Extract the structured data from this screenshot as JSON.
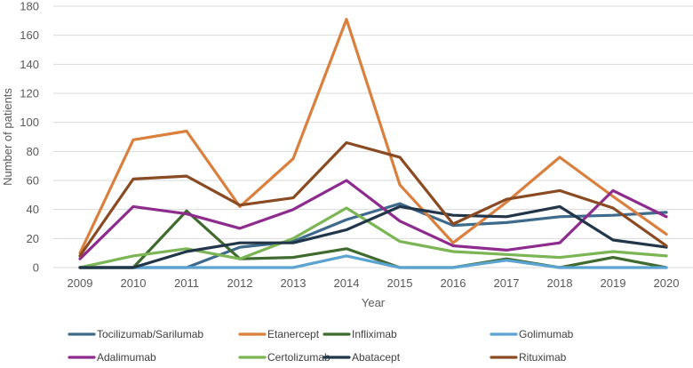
{
  "chart_data": {
    "type": "line",
    "title": "",
    "xlabel": "Year",
    "ylabel": "Number of patients",
    "ylim": [
      0,
      180
    ],
    "yticks": [
      0,
      20,
      40,
      60,
      80,
      100,
      120,
      140,
      160,
      180
    ],
    "grid": true,
    "legend_position": "bottom",
    "categories": [
      "2009",
      "2010",
      "2011",
      "2012",
      "2013",
      "2014",
      "2015",
      "2016",
      "2017",
      "2018",
      "2019",
      "2020"
    ],
    "series": [
      {
        "name": "Tocilizumab/Sarilumab",
        "color": "#3E6A8C",
        "values": [
          0,
          0,
          0,
          14,
          18,
          33,
          44,
          29,
          31,
          35,
          36,
          38
        ]
      },
      {
        "name": "Etanercept",
        "color": "#D9803F",
        "values": [
          10,
          88,
          94,
          42,
          75,
          171,
          57,
          17,
          45,
          76,
          49,
          23
        ]
      },
      {
        "name": "Infliximab",
        "color": "#3F6B2E",
        "values": [
          0,
          0,
          39,
          6,
          7,
          13,
          0,
          0,
          6,
          0,
          7,
          0
        ]
      },
      {
        "name": "Golimumab",
        "color": "#5BA3D1",
        "values": [
          0,
          0,
          0,
          0,
          0,
          8,
          0,
          0,
          5,
          0,
          0,
          0
        ]
      },
      {
        "name": "Adalimumab",
        "color": "#8E2C8E",
        "values": [
          6,
          42,
          37,
          27,
          40,
          60,
          32,
          15,
          12,
          17,
          53,
          35
        ]
      },
      {
        "name": "Certolizumab",
        "color": "#7BB554",
        "values": [
          0,
          8,
          13,
          6,
          20,
          41,
          18,
          11,
          9,
          7,
          11,
          8
        ]
      },
      {
        "name": "Abatacept",
        "color": "#22364A",
        "values": [
          0,
          0,
          11,
          17,
          17,
          26,
          42,
          36,
          35,
          42,
          19,
          14
        ]
      },
      {
        "name": "Rituximab",
        "color": "#8A4A22",
        "values": [
          8,
          61,
          63,
          43,
          48,
          86,
          76,
          30,
          47,
          53,
          41,
          15
        ]
      }
    ]
  }
}
